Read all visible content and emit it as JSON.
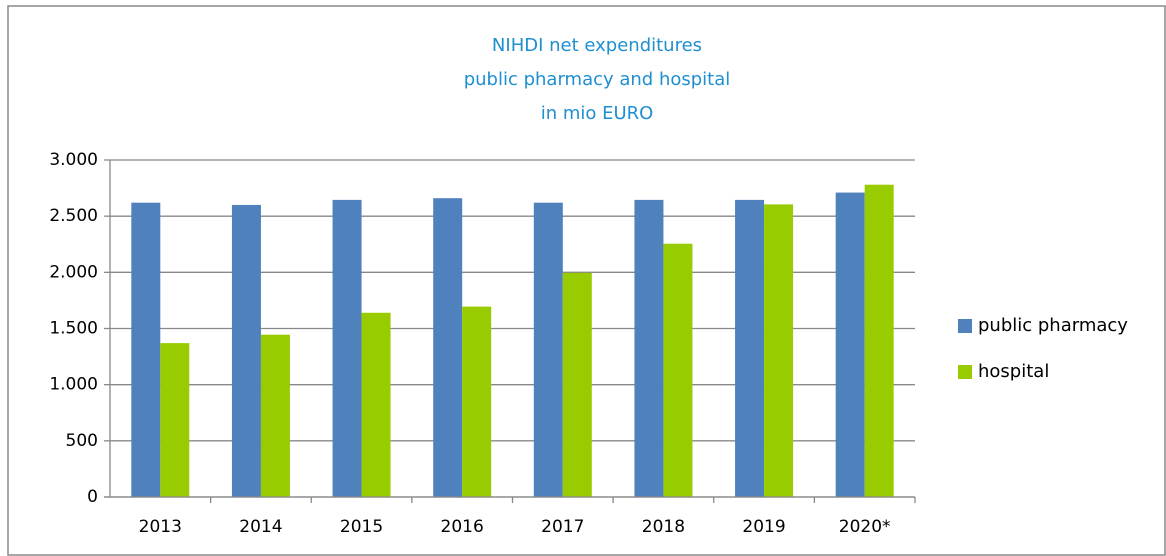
{
  "chart_data": {
    "type": "bar",
    "title": [
      "NIHDI net expenditures",
      "public pharmacy and hospital",
      "in mio EURO"
    ],
    "categories": [
      "2013",
      "2014",
      "2015",
      "2016",
      "2017",
      "2018",
      "2019",
      "2020*"
    ],
    "series": [
      {
        "name": "public pharmacy",
        "color": "#4f81bd",
        "values": [
          2620,
          2600,
          2645,
          2660,
          2620,
          2645,
          2645,
          2710
        ]
      },
      {
        "name": "hospital",
        "color": "#99cc00",
        "values": [
          1370,
          1445,
          1640,
          1695,
          1995,
          2255,
          2605,
          2780
        ]
      }
    ],
    "ylim": [
      0,
      3000
    ],
    "yticks": [
      0,
      500,
      {
        "value": 1000,
        "label": "1.000"
      },
      {
        "value": 1500,
        "label": "1.500"
      },
      {
        "value": 2000,
        "label": "2.000"
      },
      {
        "value": 2500,
        "label": "2.500"
      },
      {
        "value": 3000,
        "label": "3.000"
      }
    ],
    "grid": true,
    "legend": "right"
  }
}
